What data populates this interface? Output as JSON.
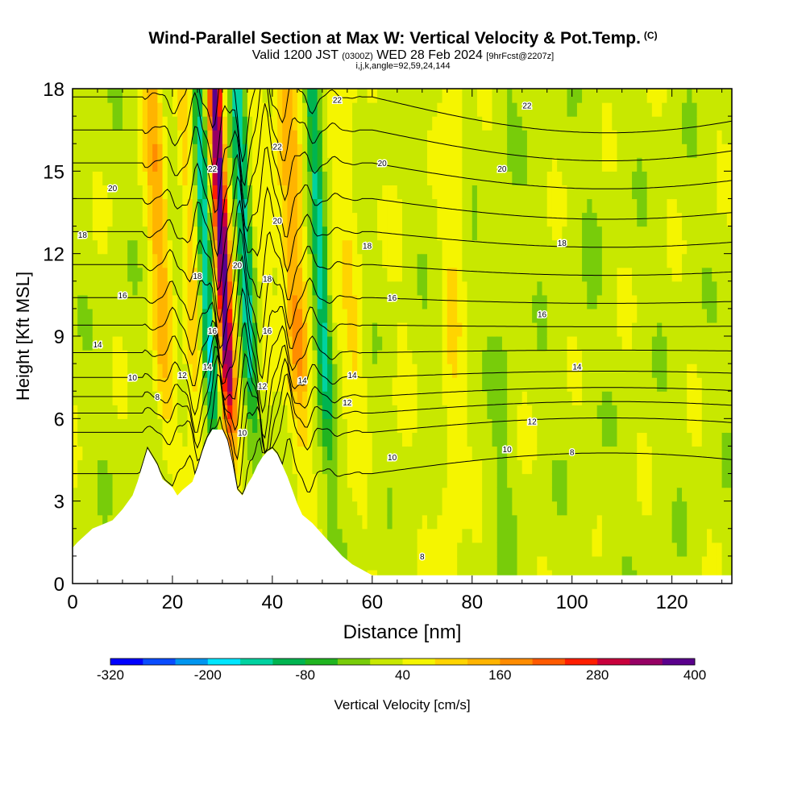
{
  "header": {
    "title": "Wind-Parallel Section at Max W: Vertical Velocity & Pot.Temp.",
    "copyright": "(C)",
    "valid_prefix": "Valid 1200 JST",
    "valid_utc": "(0300Z)",
    "valid_date": "WED 28 Feb 2024",
    "forecast": "[9hrFcst@2207z]",
    "indices": "i,j,k,angle=92,59,24,144"
  },
  "colorbar": {
    "label": "Vertical Velocity [cm/s]",
    "tick_labels": [
      "-320",
      "-200",
      "-80",
      "40",
      "160",
      "280",
      "400"
    ],
    "colors": [
      "#0000ff",
      "#0a4cff",
      "#0096f0",
      "#00e6ff",
      "#00d2a0",
      "#00b450",
      "#20b420",
      "#78cc0a",
      "#c8e800",
      "#f5f500",
      "#ffd400",
      "#ffb400",
      "#ff8c00",
      "#ff5a00",
      "#ff1e00",
      "#c8003c",
      "#960064",
      "#5a008c"
    ]
  },
  "chart_data": {
    "type": "heatmap",
    "title": "Wind-Parallel Section at Max W: Vertical Velocity & Pot.Temp.",
    "xlabel": "Distance [nm]",
    "ylabel": "Height [Kft MSL]",
    "xlim": [
      0,
      132
    ],
    "ylim": [
      0,
      18
    ],
    "xticks": [
      "0",
      "20",
      "40",
      "60",
      "80",
      "100",
      "120"
    ],
    "yticks": [
      "0",
      "3",
      "6",
      "9",
      "12",
      "15",
      "18"
    ],
    "colorscale_range": [
      -320,
      400
    ],
    "terrain_kft": [
      [
        0,
        1.3
      ],
      [
        1,
        1.5
      ],
      [
        4,
        2.0
      ],
      [
        8,
        2.3
      ],
      [
        10,
        2.7
      ],
      [
        12,
        3.2
      ],
      [
        13,
        3.7
      ],
      [
        14,
        4.3
      ],
      [
        15,
        4.9
      ],
      [
        17,
        4.3
      ],
      [
        18,
        3.8
      ],
      [
        20,
        3.5
      ],
      [
        21,
        3.2
      ],
      [
        22,
        3.4
      ],
      [
        24,
        3.7
      ],
      [
        25,
        4.2
      ],
      [
        26,
        4.8
      ],
      [
        27,
        5.3
      ],
      [
        28,
        5.6
      ],
      [
        30,
        5.6
      ],
      [
        31,
        5.2
      ],
      [
        32,
        4.4
      ],
      [
        33,
        3.4
      ],
      [
        34,
        3.2
      ],
      [
        35,
        3.6
      ],
      [
        36,
        3.9
      ],
      [
        37,
        4.3
      ],
      [
        38,
        4.6
      ],
      [
        39,
        4.8
      ],
      [
        40,
        4.9
      ],
      [
        41,
        4.7
      ],
      [
        42,
        4.3
      ],
      [
        43,
        3.9
      ],
      [
        44,
        3.4
      ],
      [
        45,
        2.9
      ],
      [
        46,
        2.5
      ],
      [
        48,
        2.2
      ],
      [
        50,
        1.8
      ],
      [
        52,
        1.4
      ],
      [
        54,
        1.0
      ],
      [
        56,
        0.7
      ],
      [
        58,
        0.5
      ],
      [
        60,
        0.3
      ],
      [
        62,
        0.3
      ],
      [
        132,
        0.3
      ]
    ],
    "w_bands_cm_s": [
      {
        "x": 18,
        "w": 120
      },
      {
        "x": 21,
        "w": -40
      },
      {
        "x": 24,
        "w": 100
      },
      {
        "x": 27,
        "w": -180
      },
      {
        "x": 30.5,
        "w": 360
      },
      {
        "x": 35,
        "w": -160
      },
      {
        "x": 38,
        "w": 40
      },
      {
        "x": 45,
        "w": 140
      },
      {
        "x": 50,
        "w": -160
      },
      {
        "x": 56,
        "w": 60
      },
      {
        "x": 66,
        "w": 10
      },
      {
        "x": 76,
        "w": 50
      },
      {
        "x": 86,
        "w": -20
      },
      {
        "x": 104,
        "w": -10
      }
    ],
    "theta_contours_label": "Pot.Temp.",
    "contour_labels": [
      {
        "x": 53,
        "y": 17.6,
        "text": "22"
      },
      {
        "x": 41,
        "y": 15.9,
        "text": "22"
      },
      {
        "x": 28,
        "y": 15.1,
        "text": "22"
      },
      {
        "x": 91,
        "y": 17.4,
        "text": "22"
      },
      {
        "x": 62,
        "y": 15.3,
        "text": "20"
      },
      {
        "x": 86,
        "y": 15.1,
        "text": "20"
      },
      {
        "x": 8,
        "y": 14.4,
        "text": "20"
      },
      {
        "x": 41,
        "y": 13.2,
        "text": "20"
      },
      {
        "x": 33,
        "y": 11.6,
        "text": "20"
      },
      {
        "x": 2,
        "y": 12.7,
        "text": "18"
      },
      {
        "x": 59,
        "y": 12.3,
        "text": "18"
      },
      {
        "x": 98,
        "y": 12.4,
        "text": "18"
      },
      {
        "x": 25,
        "y": 11.2,
        "text": "18"
      },
      {
        "x": 39,
        "y": 11.1,
        "text": "18"
      },
      {
        "x": 10,
        "y": 10.5,
        "text": "16"
      },
      {
        "x": 64,
        "y": 10.4,
        "text": "16"
      },
      {
        "x": 94,
        "y": 9.8,
        "text": "16"
      },
      {
        "x": 28,
        "y": 9.2,
        "text": "16"
      },
      {
        "x": 39,
        "y": 9.2,
        "text": "16"
      },
      {
        "x": 5,
        "y": 8.7,
        "text": "14"
      },
      {
        "x": 27,
        "y": 7.9,
        "text": "14"
      },
      {
        "x": 46,
        "y": 7.4,
        "text": "14"
      },
      {
        "x": 56,
        "y": 7.6,
        "text": "14"
      },
      {
        "x": 101,
        "y": 7.9,
        "text": "14"
      },
      {
        "x": 12,
        "y": 7.5,
        "text": "10"
      },
      {
        "x": 22,
        "y": 7.6,
        "text": "12"
      },
      {
        "x": 38,
        "y": 7.2,
        "text": "12"
      },
      {
        "x": 55,
        "y": 6.6,
        "text": "12"
      },
      {
        "x": 92,
        "y": 5.9,
        "text": "12"
      },
      {
        "x": 17,
        "y": 6.8,
        "text": "8"
      },
      {
        "x": 34,
        "y": 5.5,
        "text": "10"
      },
      {
        "x": 64,
        "y": 4.6,
        "text": "10"
      },
      {
        "x": 87,
        "y": 4.9,
        "text": "10"
      },
      {
        "x": 100,
        "y": 4.8,
        "text": "8"
      },
      {
        "x": 70,
        "y": 1.0,
        "text": "8"
      }
    ]
  }
}
